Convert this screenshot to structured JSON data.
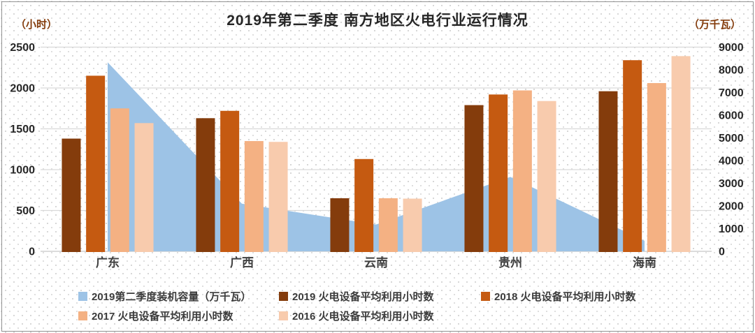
{
  "title": "2019年第二季度 南方地区火电行业运行情况",
  "left_axis": {
    "unit": "（小时）",
    "ticks": [
      2500,
      2000,
      1500,
      1000,
      500,
      0
    ],
    "max": 2500
  },
  "right_axis": {
    "unit": "（万千瓦）",
    "ticks": [
      9000,
      8000,
      7000,
      6000,
      5000,
      4000,
      3000,
      2000,
      1000,
      0
    ],
    "max": 9000
  },
  "colors": {
    "title_text": "#262626",
    "axis_unit_text": "#843C0C",
    "tick_text": "#262626",
    "category_text": "#404040",
    "gridline": "#d9d9d9",
    "baseline": "#c6c6c6",
    "area": "#9DC3E6",
    "bar_2019": "#843C0C",
    "bar_2018": "#C55A11",
    "bar_2017": "#F4B183",
    "bar_2016": "#F8CBAD"
  },
  "chart_data": {
    "type": "combo: grouped bar (left axis, hours) + area (right axis, 万千瓦)",
    "title": "2019年第二季度 南方地区火电行业运行情况",
    "categories": [
      "广东",
      "广西",
      "云南",
      "贵州",
      "海南"
    ],
    "left_ylim": [
      0,
      2500
    ],
    "right_ylim": [
      0,
      9000
    ],
    "grid": true,
    "legend_position": "bottom",
    "area_series": {
      "name": "2019第二季度装机容量（万千瓦）",
      "axis": "right",
      "color": "#9DC3E6",
      "values": [
        8330,
        2100,
        1180,
        3280,
        460
      ]
    },
    "bar_series": [
      {
        "name": "2019 火电设备平均利用小时数",
        "axis": "left",
        "color": "#843C0C",
        "values": [
          1380,
          1630,
          650,
          1790,
          1960
        ]
      },
      {
        "name": "2018 火电设备平均利用小时数",
        "axis": "left",
        "color": "#C55A11",
        "values": [
          2150,
          1720,
          1130,
          1920,
          2340
        ]
      },
      {
        "name": "2017 火电设备平均利用小时数",
        "axis": "left",
        "color": "#F4B183",
        "values": [
          1750,
          1350,
          650,
          1970,
          2060
        ]
      },
      {
        "name": "2016 火电设备平均利用小时数",
        "axis": "left",
        "color": "#F8CBAD",
        "values": [
          1570,
          1340,
          645,
          1840,
          2390
        ]
      }
    ]
  },
  "legend": {
    "items": [
      {
        "label": "2019第二季度装机容量（万千瓦）",
        "color": "#9DC3E6"
      },
      {
        "label": "2019 火电设备平均利用小时数",
        "color": "#843C0C"
      },
      {
        "label": "2018 火电设备平均利用小时数",
        "color": "#C55A11"
      },
      {
        "label": "2017 火电设备平均利用小时数",
        "color": "#F4B183"
      },
      {
        "label": "2016 火电设备平均利用小时数",
        "color": "#F8CBAD"
      }
    ]
  }
}
